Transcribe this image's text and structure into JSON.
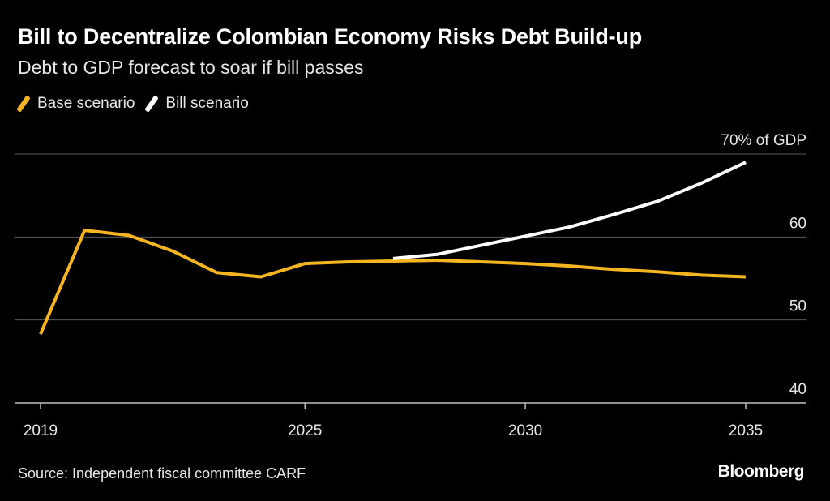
{
  "title": "Bill to Decentralize Colombian Economy Risks Debt Build-up",
  "subtitle": "Debt to GDP forecast to soar if bill passes",
  "source": "Source: Independent fiscal committee CARF",
  "brand": "Bloomberg",
  "colors": {
    "base": "#f4b521",
    "bill": "#ffffff",
    "grid": "#5a5a5a",
    "background": "#000000"
  },
  "chart_data": {
    "type": "line",
    "title": "Bill to Decentralize Colombian Economy Risks Debt Build-up",
    "subtitle": "Debt to GDP forecast to soar if bill passes",
    "xlabel": "",
    "ylabel": "",
    "xlim": [
      2019,
      2036.5
    ],
    "ylim": [
      40,
      70
    ],
    "x_ticks": [
      2019,
      2025,
      2030,
      2035
    ],
    "x_tick_labels": [
      "2019",
      "2025",
      "2030",
      "2035"
    ],
    "y_ticks": [
      40,
      50,
      60,
      70
    ],
    "y_tick_labels": [
      "40",
      "50",
      "60",
      "70% of GDP"
    ],
    "grid": true,
    "legend_position": "top-left",
    "series": [
      {
        "name": "Base scenario",
        "color": "#f4b521",
        "x": [
          2019,
          2020,
          2021,
          2022,
          2023,
          2024,
          2025,
          2026,
          2027,
          2028,
          2029,
          2030,
          2031,
          2032,
          2033,
          2034,
          2035
        ],
        "y": [
          48.3,
          60.8,
          60.2,
          58.3,
          55.7,
          55.2,
          56.8,
          57.0,
          57.1,
          57.2,
          57.0,
          56.8,
          56.5,
          56.1,
          55.8,
          55.4,
          55.2
        ]
      },
      {
        "name": "Bill scenario",
        "color": "#ffffff",
        "x": [
          2027,
          2028,
          2029,
          2030,
          2031,
          2032,
          2033,
          2034,
          2035
        ],
        "y": [
          57.4,
          57.9,
          59.0,
          60.1,
          61.2,
          62.7,
          64.3,
          66.5,
          69.0
        ]
      }
    ]
  }
}
